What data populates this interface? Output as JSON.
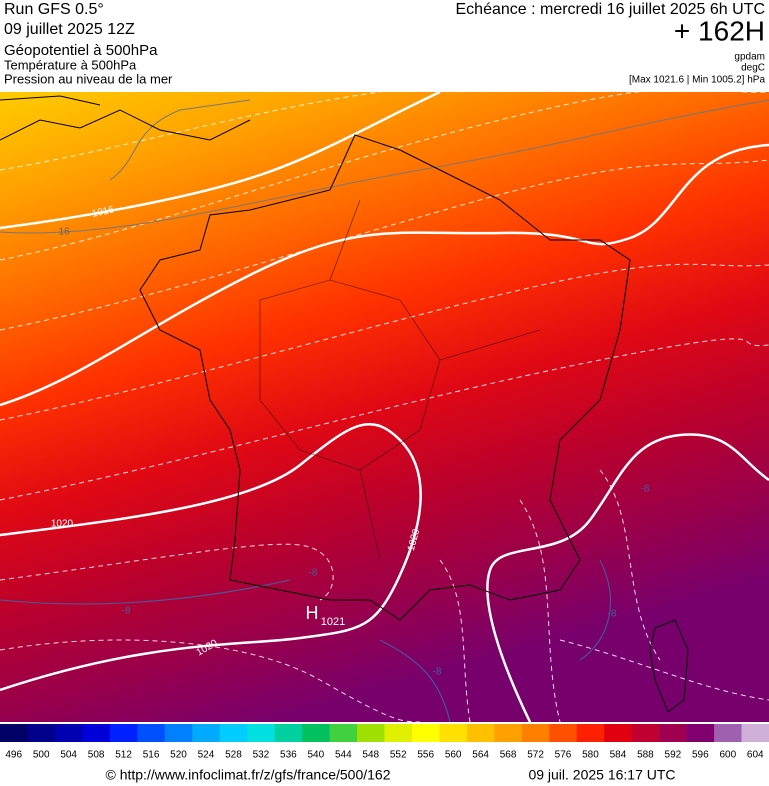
{
  "header": {
    "run": "Run GFS 0.5°",
    "date": "09 juillet 2025 12Z",
    "layers": [
      "Géopotentiel à 500hPa",
      "Température à 500hPa",
      "Pression au niveau de la mer"
    ],
    "forecast": "Echéance : mercredi 16 juillet 2025 6h UTC",
    "lead": "+ 162H",
    "units": [
      "gpdam",
      "degC",
      "[Max 1021.6 | Min 1005.2] hPa"
    ]
  },
  "map": {
    "labels": [
      "1016",
      "16",
      "1020",
      "1020",
      "1020",
      "H",
      "1021",
      "-8",
      "-8",
      "-8",
      "-8",
      "-8"
    ]
  },
  "legend": {
    "labels": [
      496,
      500,
      504,
      508,
      512,
      516,
      520,
      524,
      528,
      532,
      536,
      540,
      544,
      548,
      552,
      556,
      560,
      564,
      568,
      572,
      576,
      580,
      584,
      588,
      592,
      596,
      600,
      604
    ],
    "colors": [
      "#000066",
      "#00008b",
      "#0000b0",
      "#0000d8",
      "#0020ff",
      "#0050ff",
      "#0080ff",
      "#00aaff",
      "#00ccff",
      "#00e0e0",
      "#00d0a0",
      "#00c060",
      "#40d040",
      "#a0e000",
      "#e0f000",
      "#ffff00",
      "#ffe000",
      "#ffc000",
      "#ffa000",
      "#ff8000",
      "#ff5000",
      "#ff2000",
      "#e00010",
      "#c00030",
      "#a00050",
      "#800070",
      "#a060b0",
      "#d0b0d8"
    ]
  },
  "footer": {
    "url": "© http://www.infoclimat.fr/z/gfs/france/500/162",
    "time": "09 juil. 2025 16:17 UTC"
  }
}
